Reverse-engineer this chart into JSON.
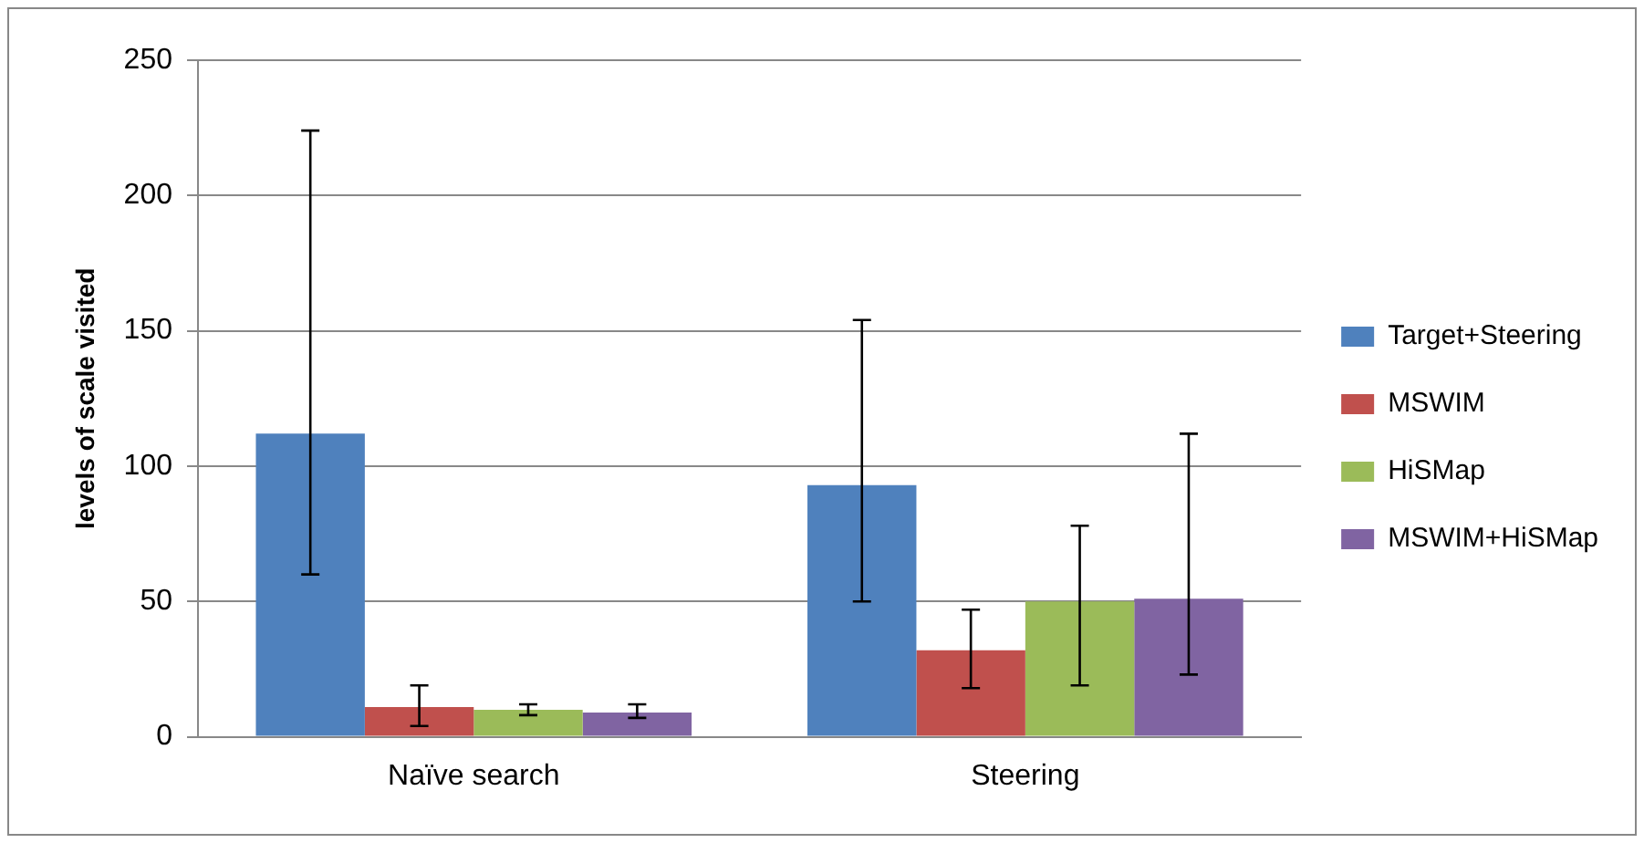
{
  "chart_data": {
    "type": "bar",
    "ylabel": "levels of scale visited",
    "categories": [
      "Naïve search",
      "Steering"
    ],
    "series": [
      {
        "name": "Target+Steering",
        "color": "#4f81bd",
        "values": [
          112,
          93
        ],
        "errors": [
          [
            60,
            224
          ],
          [
            50,
            154
          ]
        ]
      },
      {
        "name": "MSWIM",
        "color": "#c0504d",
        "values": [
          11,
          32
        ],
        "errors": [
          [
            4,
            19
          ],
          [
            18,
            47
          ]
        ]
      },
      {
        "name": "HiSMap",
        "color": "#9bbb59",
        "values": [
          10,
          50
        ],
        "errors": [
          [
            8,
            12
          ],
          [
            19,
            78
          ]
        ]
      },
      {
        "name": "MSWIM+HiSMap",
        "color": "#8064a2",
        "values": [
          9,
          51
        ],
        "errors": [
          [
            7,
            12
          ],
          [
            23,
            112
          ]
        ]
      }
    ],
    "ylim": [
      0,
      250
    ],
    "yticks": [
      0,
      50,
      100,
      150,
      200,
      250
    ],
    "grid": "y",
    "legend": "right"
  }
}
